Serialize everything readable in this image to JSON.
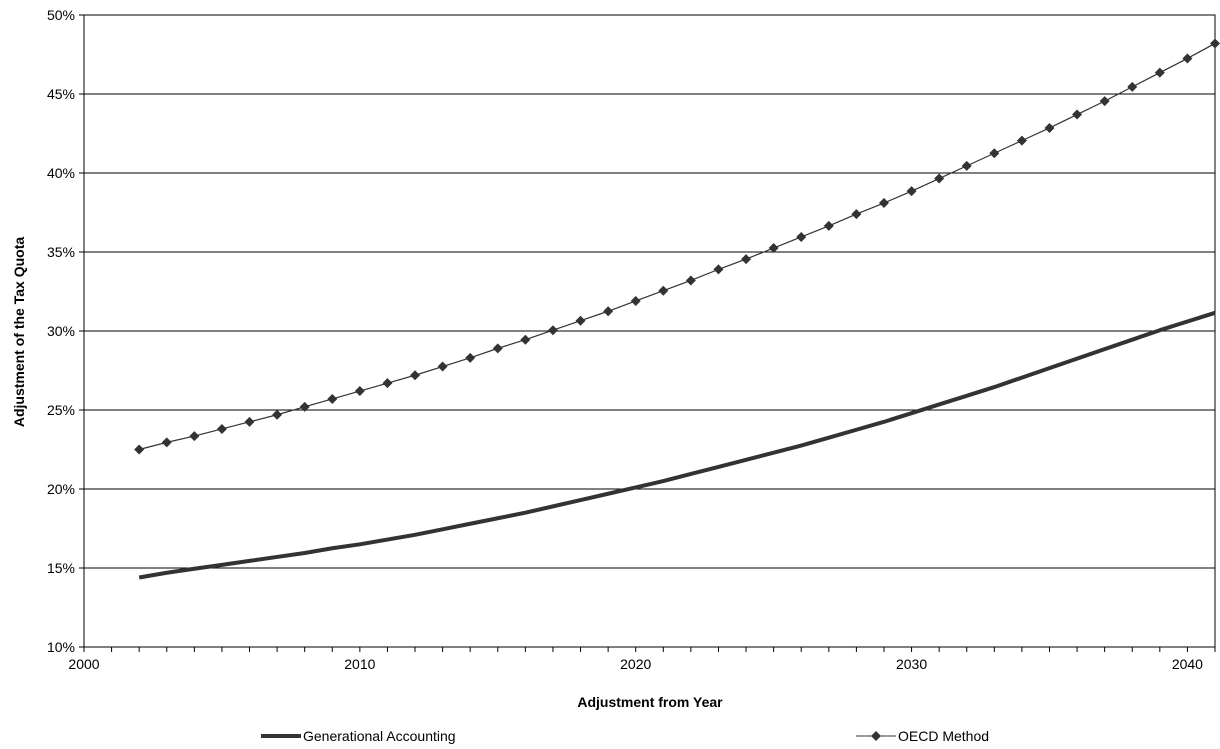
{
  "chart_data": {
    "type": "line",
    "title": "",
    "xlabel": "Adjustment from Year",
    "ylabel": "Adjustment of the Tax Quota",
    "xlim": [
      2000,
      2041
    ],
    "ylim": [
      10,
      50
    ],
    "x_ticks": [
      "2000",
      "2010",
      "2020",
      "2030",
      "2040"
    ],
    "y_ticks": [
      "10%",
      "15%",
      "20%",
      "25%",
      "30%",
      "35%",
      "40%",
      "45%",
      "50%"
    ],
    "grid": "horizontal",
    "legend": "bottom",
    "series": [
      {
        "name": "Generational Accounting",
        "color": "#333333",
        "x": [
          2002,
          2003,
          2004,
          2005,
          2006,
          2007,
          2008,
          2009,
          2010,
          2011,
          2012,
          2013,
          2014,
          2015,
          2016,
          2017,
          2018,
          2019,
          2020,
          2021,
          2022,
          2023,
          2024,
          2025,
          2026,
          2027,
          2028,
          2029,
          2030,
          2031,
          2032,
          2033,
          2034,
          2035,
          2036,
          2037,
          2038,
          2039,
          2040,
          2041
        ],
        "values": [
          14.4,
          14.7,
          14.95,
          15.2,
          15.45,
          15.7,
          15.95,
          16.25,
          16.5,
          16.8,
          17.1,
          17.45,
          17.8,
          18.15,
          18.5,
          18.9,
          19.3,
          19.7,
          20.1,
          20.5,
          20.95,
          21.4,
          21.85,
          22.3,
          22.75,
          23.25,
          23.75,
          24.25,
          24.8,
          25.35,
          25.9,
          26.45,
          27.05,
          27.65,
          28.25,
          28.85,
          29.45,
          30.05,
          30.6,
          31.15
        ]
      },
      {
        "name": "OECD Method",
        "color": "#333333",
        "x": [
          2002,
          2003,
          2004,
          2005,
          2006,
          2007,
          2008,
          2009,
          2010,
          2011,
          2012,
          2013,
          2014,
          2015,
          2016,
          2017,
          2018,
          2019,
          2020,
          2021,
          2022,
          2023,
          2024,
          2025,
          2026,
          2027,
          2028,
          2029,
          2030,
          2031,
          2032,
          2033,
          2034,
          2035,
          2036,
          2037,
          2038,
          2039,
          2040,
          2041
        ],
        "values": [
          22.5,
          22.95,
          23.35,
          23.8,
          24.25,
          24.7,
          25.2,
          25.7,
          26.2,
          26.7,
          27.2,
          27.75,
          28.3,
          28.9,
          29.45,
          30.05,
          30.65,
          31.25,
          31.9,
          32.55,
          33.2,
          33.9,
          34.55,
          35.25,
          35.95,
          36.65,
          37.4,
          38.1,
          38.85,
          39.65,
          40.45,
          41.25,
          42.05,
          42.85,
          43.7,
          44.55,
          45.45,
          46.35,
          47.25,
          48.2
        ]
      }
    ]
  }
}
